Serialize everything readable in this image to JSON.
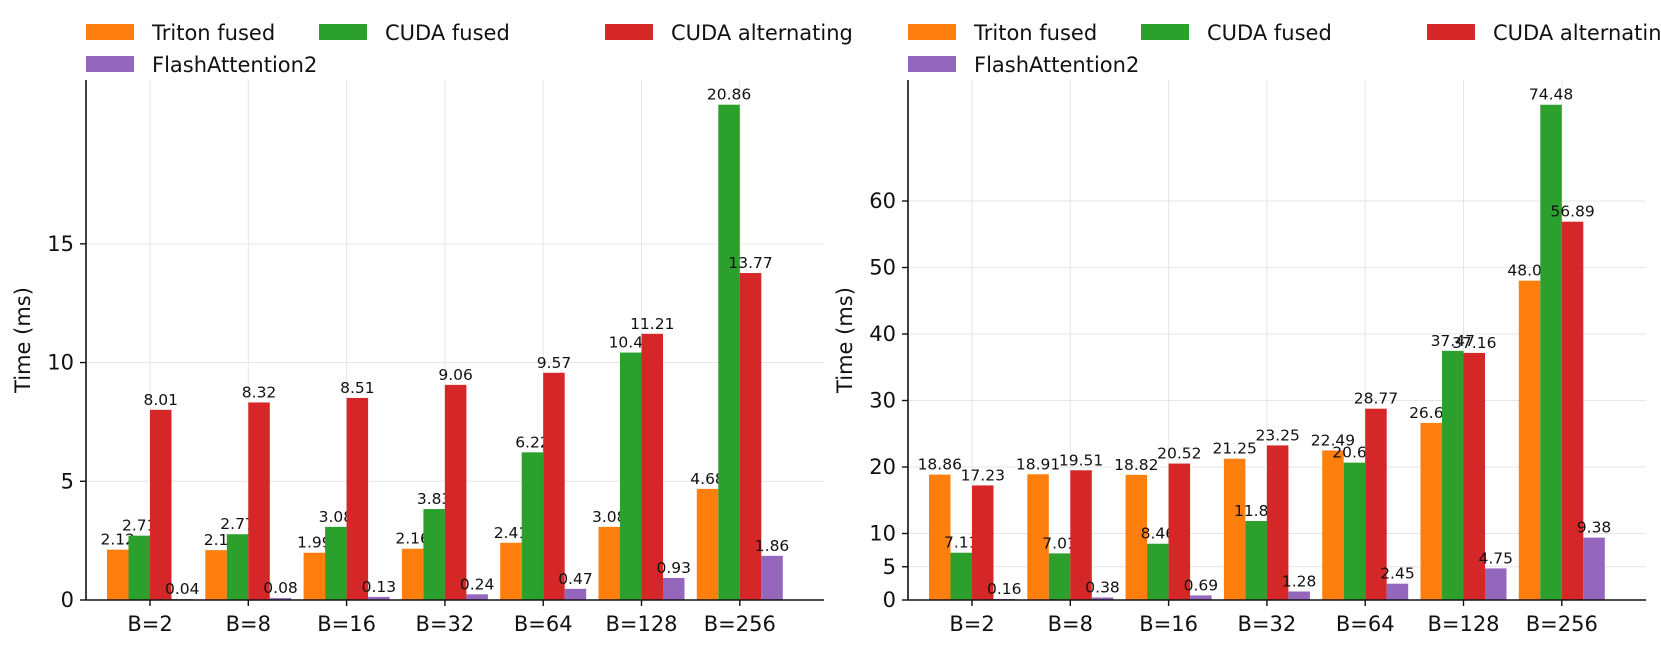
{
  "chart_data": [
    {
      "type": "bar",
      "ylabel": "Time (ms)",
      "categories": [
        "B=2",
        "B=8",
        "B=16",
        "B=32",
        "B=64",
        "B=128",
        "B=256"
      ],
      "yticks": [
        0,
        5,
        10,
        15
      ],
      "ylim": [
        0,
        21.9
      ],
      "grid": true,
      "legend_position": "top",
      "series": [
        {
          "name": "Triton fused",
          "color": "#ff7f0e",
          "values": [
            2.12,
            2.1,
            1.99,
            2.16,
            2.41,
            3.08,
            4.68
          ],
          "labels": [
            "2.12",
            "2.1",
            "1.99",
            "2.16",
            "2.41",
            "3.08",
            "4.68"
          ]
        },
        {
          "name": "CUDA fused",
          "color": "#2ca02c",
          "values": [
            2.71,
            2.77,
            3.08,
            3.83,
            6.22,
            10.42,
            20.86
          ],
          "labels": [
            "2.71",
            "2.77",
            "3.08",
            "3.83",
            "6.22",
            "10.42",
            "20.86"
          ]
        },
        {
          "name": "CUDA alternating",
          "color": "#d62728",
          "values": [
            8.01,
            8.32,
            8.51,
            9.06,
            9.57,
            11.21,
            13.77
          ],
          "labels": [
            "8.01",
            "8.32",
            "8.51",
            "9.06",
            "9.57",
            "11.21",
            "13.77"
          ]
        },
        {
          "name": "FlashAttention2",
          "color": "#9467bd",
          "values": [
            0.04,
            0.08,
            0.13,
            0.24,
            0.47,
            0.93,
            1.86
          ],
          "labels": [
            "0.04",
            "0.08",
            "0.13",
            "0.24",
            "0.47",
            "0.93",
            "1.86"
          ]
        }
      ]
    },
    {
      "type": "bar",
      "ylabel": "Time (ms)",
      "categories": [
        "B=2",
        "B=8",
        "B=16",
        "B=32",
        "B=64",
        "B=128",
        "B=256"
      ],
      "yticks": [
        0,
        5,
        10,
        20,
        30,
        40,
        50,
        60
      ],
      "ylim": [
        0,
        78.2
      ],
      "grid": true,
      "legend_position": "top",
      "series": [
        {
          "name": "Triton fused",
          "color": "#ff7f0e",
          "values": [
            18.86,
            18.91,
            18.82,
            21.25,
            22.49,
            26.62,
            48.02
          ],
          "labels": [
            "18.86",
            "18.91",
            "18.82",
            "21.25",
            "22.49",
            "26.62",
            "48.02"
          ]
        },
        {
          "name": "CUDA fused",
          "color": "#2ca02c",
          "values": [
            7.11,
            7.01,
            8.46,
            11.88,
            20.66,
            37.47,
            74.48
          ],
          "labels": [
            "7.11",
            "7.01",
            "8.46",
            "11.88",
            "20.66",
            "37.47",
            "74.48"
          ]
        },
        {
          "name": "CUDA alternating",
          "color": "#d62728",
          "values": [
            17.23,
            19.51,
            20.52,
            23.25,
            28.77,
            37.16,
            56.89
          ],
          "labels": [
            "17.23",
            "19.51",
            "20.52",
            "23.25",
            "28.77",
            "37.16",
            "56.89"
          ]
        },
        {
          "name": "FlashAttention2",
          "color": "#9467bd",
          "values": [
            0.16,
            0.38,
            0.69,
            1.28,
            2.45,
            4.75,
            9.38
          ],
          "labels": [
            "0.16",
            "0.38",
            "0.69",
            "1.28",
            "2.45",
            "4.75",
            "9.38"
          ]
        }
      ]
    }
  ]
}
